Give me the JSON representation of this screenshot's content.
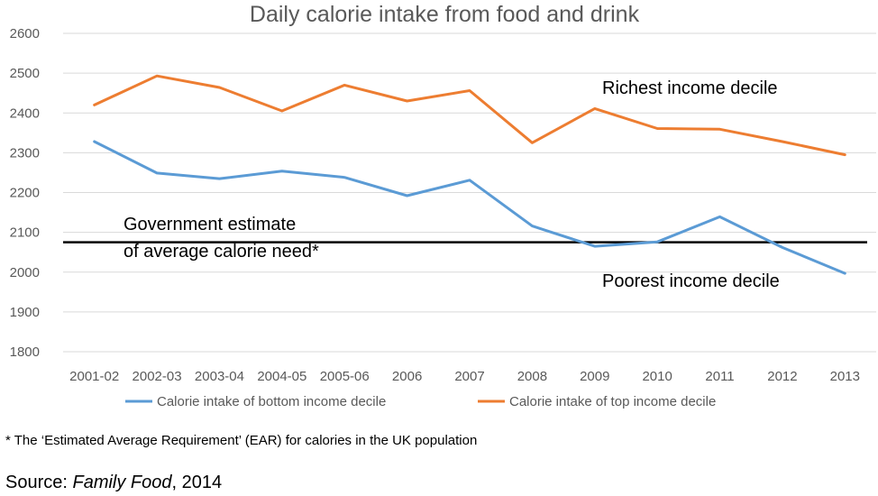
{
  "chart_data": {
    "type": "line",
    "title": "Daily calorie intake from food and drink",
    "xlabel": "",
    "ylabel": "",
    "ylim": [
      1800,
      2600
    ],
    "yticks": [
      "1800",
      "1900",
      "2000",
      "2100",
      "2200",
      "2300",
      "2400",
      "2500",
      "2600"
    ],
    "categories": [
      "2001-02",
      "2002-03",
      "2003-04",
      "2004-05",
      "2005-06",
      "2006",
      "2007",
      "2008",
      "2009",
      "2010",
      "2011",
      "2012",
      "2013"
    ],
    "series": [
      {
        "name": "Calorie intake of bottom income decile",
        "color": "#5b9bd5",
        "values": [
          2328,
          2249,
          2235,
          2254,
          2238,
          2192,
          2231,
          2116,
          2065,
          2076,
          2139,
          2062,
          1997
        ]
      },
      {
        "name": "Calorie intake of top income decile",
        "color": "#ed7d31",
        "values": [
          2420,
          2493,
          2464,
          2405,
          2470,
          2430,
          2456,
          2325,
          2411,
          2361,
          2359,
          2328,
          2295
        ]
      }
    ],
    "reference_line": {
      "value": 2075,
      "color": "#000000",
      "label_line1": "Government estimate",
      "label_line2": "of average calorie need*"
    },
    "annotations": {
      "richest": "Richest income decile",
      "poorest": "Poorest income decile"
    },
    "grid": true,
    "legend_position": "bottom"
  },
  "footnote": "* The ‘Estimated Average Requirement’ (EAR) for calories in the UK population",
  "source": {
    "prefix": "Source: ",
    "title": "Family Food",
    "suffix": ", 2014"
  }
}
